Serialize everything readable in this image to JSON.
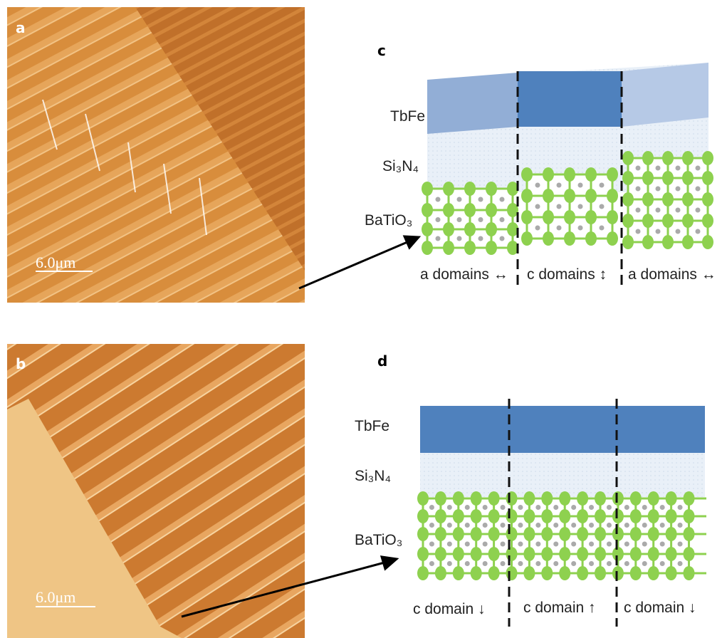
{
  "panels": {
    "a": {
      "label": "a",
      "scale_bar": "6.0μm"
    },
    "b": {
      "label": "b",
      "scale_bar": "6.0μm"
    },
    "c": {
      "label": "c",
      "layers": [
        "TbFe",
        "Si₃N₄",
        "BaTiO₃"
      ],
      "domains": [
        "a domains ↔",
        "c domains ↕",
        "a domains ↔"
      ]
    },
    "d": {
      "label": "d",
      "layers": [
        "TbFe",
        "Si₃N₄",
        "BaTiO₃"
      ],
      "domains": [
        "c domain ↓",
        "c domain ↑",
        "c domain ↓"
      ]
    }
  }
}
